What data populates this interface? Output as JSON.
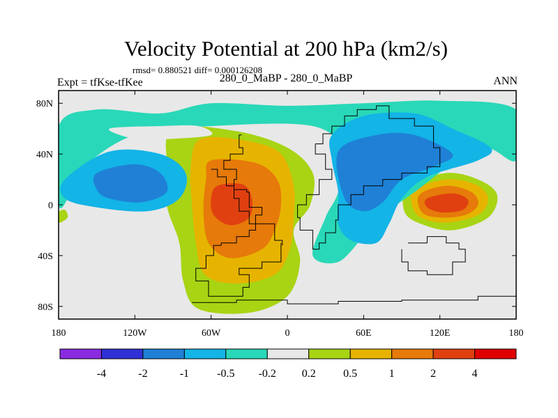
{
  "chart_data": {
    "type": "contour-map",
    "title": "Velocity Potential at 200 hPa (km2/s)",
    "stats": "rmsd= 0.880521  diff= 0.000126208",
    "subtitle": "280_0_MaBP - 280_0_MaBP",
    "left_label": "Expt = tfKse-tfKee",
    "right_label": "ANN",
    "x_ticks": [
      {
        "value": -180,
        "label": "180"
      },
      {
        "value": -120,
        "label": "120W"
      },
      {
        "value": -60,
        "label": "60W"
      },
      {
        "value": 0,
        "label": "0"
      },
      {
        "value": 60,
        "label": "60E"
      },
      {
        "value": 120,
        "label": "120E"
      },
      {
        "value": 180,
        "label": "180"
      }
    ],
    "y_ticks": [
      {
        "value": 80,
        "label": "80N"
      },
      {
        "value": 40,
        "label": "40N"
      },
      {
        "value": 0,
        "label": "0"
      },
      {
        "value": -40,
        "label": "40S"
      },
      {
        "value": -80,
        "label": "80S"
      }
    ],
    "xlim": [
      -180,
      180
    ],
    "ylim": [
      -90,
      90
    ],
    "colorbar": {
      "colors": [
        "#8a2be2",
        "#2f30d6",
        "#1f80d6",
        "#13b4e6",
        "#29d8b8",
        "#e8e8e8",
        "#a8d414",
        "#e6b400",
        "#e67a0a",
        "#e04010",
        "#e00000"
      ],
      "labels": [
        "-4",
        "-2",
        "-1",
        "-0.5",
        "-0.2",
        "0.2",
        "0.5",
        "1",
        "2",
        "4"
      ]
    },
    "regions": [
      {
        "name": "positive-south-america",
        "level": 0.2,
        "color": "#a8d414",
        "points": [
          [
            -90,
            60
          ],
          [
            -40,
            58
          ],
          [
            0,
            45
          ],
          [
            20,
            25
          ],
          [
            18,
            0
          ],
          [
            5,
            -20
          ],
          [
            10,
            -45
          ],
          [
            0,
            -72
          ],
          [
            -30,
            -85
          ],
          [
            -70,
            -82
          ],
          [
            -82,
            -60
          ],
          [
            -85,
            -30
          ],
          [
            -95,
            0
          ],
          [
            -95,
            30
          ]
        ]
      },
      {
        "name": "positive-south-america-05",
        "level": 0.5,
        "color": "#e6b400",
        "points": [
          [
            -68,
            52
          ],
          [
            -30,
            50
          ],
          [
            -5,
            40
          ],
          [
            5,
            15
          ],
          [
            5,
            -10
          ],
          [
            2,
            -35
          ],
          [
            -10,
            -55
          ],
          [
            -40,
            -62
          ],
          [
            -65,
            -55
          ],
          [
            -72,
            -30
          ],
          [
            -75,
            0
          ],
          [
            -76,
            30
          ]
        ]
      },
      {
        "name": "positive-south-america-1",
        "level": 1,
        "color": "#e67a0a",
        "points": [
          [
            -60,
            35
          ],
          [
            -25,
            33
          ],
          [
            -8,
            20
          ],
          [
            -5,
            0
          ],
          [
            -10,
            -20
          ],
          [
            -20,
            -35
          ],
          [
            -45,
            -42
          ],
          [
            -62,
            -30
          ],
          [
            -66,
            -5
          ],
          [
            -64,
            20
          ]
        ]
      },
      {
        "name": "positive-south-america-2",
        "level": 2,
        "color": "#e04010",
        "points": [
          [
            -55,
            15
          ],
          [
            -35,
            16
          ],
          [
            -28,
            5
          ],
          [
            -30,
            -10
          ],
          [
            -45,
            -16
          ],
          [
            -58,
            -8
          ],
          [
            -60,
            5
          ]
        ]
      },
      {
        "name": "positive-west-pacific",
        "level": 0.2,
        "color": "#a8d414",
        "points": [
          [
            95,
            15
          ],
          [
            125,
            25
          ],
          [
            150,
            20
          ],
          [
            165,
            8
          ],
          [
            158,
            -10
          ],
          [
            130,
            -20
          ],
          [
            105,
            -15
          ],
          [
            92,
            -5
          ]
        ]
      },
      {
        "name": "positive-west-pacific-05",
        "level": 0.5,
        "color": "#e6b400",
        "points": [
          [
            100,
            12
          ],
          [
            125,
            20
          ],
          [
            148,
            16
          ],
          [
            158,
            5
          ],
          [
            150,
            -8
          ],
          [
            125,
            -14
          ],
          [
            105,
            -10
          ],
          [
            98,
            0
          ]
        ]
      },
      {
        "name": "positive-west-pacific-1",
        "level": 1,
        "color": "#e67a0a",
        "points": [
          [
            104,
            8
          ],
          [
            125,
            15
          ],
          [
            145,
            10
          ],
          [
            150,
            0
          ],
          [
            140,
            -8
          ],
          [
            120,
            -10
          ],
          [
            106,
            -6
          ]
        ]
      },
      {
        "name": "positive-west-pacific-2",
        "level": 2,
        "color": "#e04010",
        "points": [
          [
            110,
            5
          ],
          [
            130,
            9
          ],
          [
            142,
            4
          ],
          [
            138,
            -4
          ],
          [
            122,
            -6
          ],
          [
            110,
            -2
          ]
        ]
      },
      {
        "name": "positive-atlantic-small",
        "level": 0.2,
        "color": "#a8d414",
        "points": [
          [
            -180,
            -6
          ],
          [
            -175,
            -4
          ],
          [
            -173,
            -10
          ],
          [
            -180,
            -14
          ]
        ]
      },
      {
        "name": "negative-north-band",
        "level": -0.2,
        "color": "#29d8b8",
        "points": [
          [
            -180,
            62
          ],
          [
            -150,
            75
          ],
          [
            -100,
            72
          ],
          [
            -60,
            80
          ],
          [
            0,
            78
          ],
          [
            60,
            80
          ],
          [
            120,
            82
          ],
          [
            180,
            75
          ],
          [
            180,
            35
          ],
          [
            150,
            45
          ],
          [
            100,
            10
          ],
          [
            80,
            -5
          ],
          [
            60,
            -25
          ],
          [
            40,
            -45
          ],
          [
            20,
            -40
          ],
          [
            30,
            -10
          ],
          [
            40,
            10
          ],
          [
            45,
            40
          ],
          [
            20,
            62
          ],
          [
            -60,
            62
          ],
          [
            -120,
            55
          ],
          [
            -160,
            30
          ],
          [
            -170,
            10
          ],
          [
            -180,
            0
          ]
        ]
      },
      {
        "name": "negative-north-band-05",
        "level": -0.5,
        "color": "#13b4e6",
        "points": [
          [
            35,
            55
          ],
          [
            60,
            70
          ],
          [
            100,
            72
          ],
          [
            130,
            60
          ],
          [
            160,
            45
          ],
          [
            150,
            35
          ],
          [
            110,
            22
          ],
          [
            90,
            5
          ],
          [
            80,
            -15
          ],
          [
            70,
            -30
          ],
          [
            50,
            -28
          ],
          [
            40,
            -15
          ],
          [
            40,
            10
          ],
          [
            35,
            35
          ]
        ]
      },
      {
        "name": "negative-asia-1",
        "level": -1,
        "color": "#1f80d6",
        "points": [
          [
            40,
            42
          ],
          [
            70,
            55
          ],
          [
            100,
            55
          ],
          [
            130,
            40
          ],
          [
            115,
            30
          ],
          [
            90,
            20
          ],
          [
            75,
            2
          ],
          [
            60,
            -5
          ],
          [
            45,
            5
          ]
        ]
      },
      {
        "name": "negative-pacific-05",
        "level": -0.5,
        "color": "#13b4e6",
        "points": [
          [
            -175,
            20
          ],
          [
            -140,
            42
          ],
          [
            -100,
            40
          ],
          [
            -80,
            25
          ],
          [
            -85,
            5
          ],
          [
            -110,
            -5
          ],
          [
            -150,
            -2
          ],
          [
            -175,
            5
          ]
        ]
      },
      {
        "name": "negative-pacific-1",
        "level": -1,
        "color": "#1f80d6",
        "points": [
          [
            -150,
            25
          ],
          [
            -120,
            32
          ],
          [
            -100,
            25
          ],
          [
            -95,
            10
          ],
          [
            -115,
            2
          ],
          [
            -140,
            5
          ],
          [
            -150,
            12
          ]
        ]
      },
      {
        "name": "neutral-arctic",
        "level": 0.0,
        "color": "#e8e8e8",
        "points": [
          [
            -140,
            60
          ],
          [
            -100,
            62
          ],
          [
            -70,
            62
          ],
          [
            -60,
            55
          ],
          [
            -90,
            52
          ],
          [
            -120,
            52
          ]
        ]
      },
      {
        "name": "neutral-south-indian",
        "level": 0.0,
        "color": "#e8e8e8",
        "points": [
          [
            -180,
            -20
          ],
          [
            -140,
            -20
          ],
          [
            -100,
            -30
          ],
          [
            -85,
            -60
          ],
          [
            -120,
            -80
          ],
          [
            -180,
            -80
          ]
        ]
      }
    ],
    "coastlines": [
      {
        "name": "americas-outline",
        "points": [
          [
            -36,
            55
          ],
          [
            -38,
            45
          ],
          [
            -35,
            40
          ],
          [
            -45,
            35
          ],
          [
            -50,
            28
          ],
          [
            -40,
            20
          ],
          [
            -42,
            12
          ],
          [
            -32,
            10
          ],
          [
            -30,
            -2
          ],
          [
            -20,
            -8
          ],
          [
            -25,
            -20
          ],
          [
            -30,
            -25
          ],
          [
            -40,
            -30
          ],
          [
            -52,
            -32
          ],
          [
            -58,
            -40
          ],
          [
            -64,
            -50
          ],
          [
            -72,
            -60
          ],
          [
            -62,
            -72
          ],
          [
            -40,
            -72
          ],
          [
            -35,
            -65
          ],
          [
            -30,
            -55
          ],
          [
            -38,
            -50
          ],
          [
            -20,
            -45
          ],
          [
            -5,
            -30
          ]
        ]
      },
      {
        "name": "north-america-outline",
        "points": [
          [
            -60,
            28
          ],
          [
            -55,
            22
          ],
          [
            -48,
            15
          ],
          [
            -42,
            5
          ],
          [
            -38,
            -5
          ],
          [
            -30,
            -15
          ],
          [
            -10,
            -28
          ],
          [
            -4,
            -32
          ]
        ]
      },
      {
        "name": "africa-eurasia-outline",
        "points": [
          [
            22,
            48
          ],
          [
            28,
            56
          ],
          [
            35,
            62
          ],
          [
            45,
            70
          ],
          [
            55,
            75
          ],
          [
            70,
            78
          ],
          [
            80,
            68
          ],
          [
            100,
            62
          ],
          [
            115,
            45
          ],
          [
            120,
            30
          ],
          [
            110,
            25
          ],
          [
            90,
            20
          ],
          [
            75,
            15
          ],
          [
            60,
            8
          ],
          [
            50,
            0
          ],
          [
            40,
            -12
          ],
          [
            38,
            -22
          ],
          [
            30,
            -30
          ],
          [
            25,
            -35
          ],
          [
            20,
            -20
          ],
          [
            10,
            -10
          ],
          [
            8,
            0
          ],
          [
            15,
            8
          ],
          [
            25,
            20
          ],
          [
            35,
            28
          ],
          [
            30,
            40
          ],
          [
            22,
            48
          ]
        ]
      },
      {
        "name": "australia-outline",
        "points": [
          [
            95,
            -30
          ],
          [
            110,
            -25
          ],
          [
            125,
            -30
          ],
          [
            135,
            -35
          ],
          [
            140,
            -45
          ],
          [
            130,
            -55
          ],
          [
            110,
            -52
          ],
          [
            95,
            -45
          ],
          [
            90,
            -35
          ]
        ]
      },
      {
        "name": "antarctica-outline",
        "points": [
          [
            -75,
            -77
          ],
          [
            -40,
            -75
          ],
          [
            0,
            -78
          ],
          [
            40,
            -76
          ],
          [
            90,
            -75
          ],
          [
            150,
            -72
          ],
          [
            180,
            -78
          ]
        ]
      }
    ]
  }
}
